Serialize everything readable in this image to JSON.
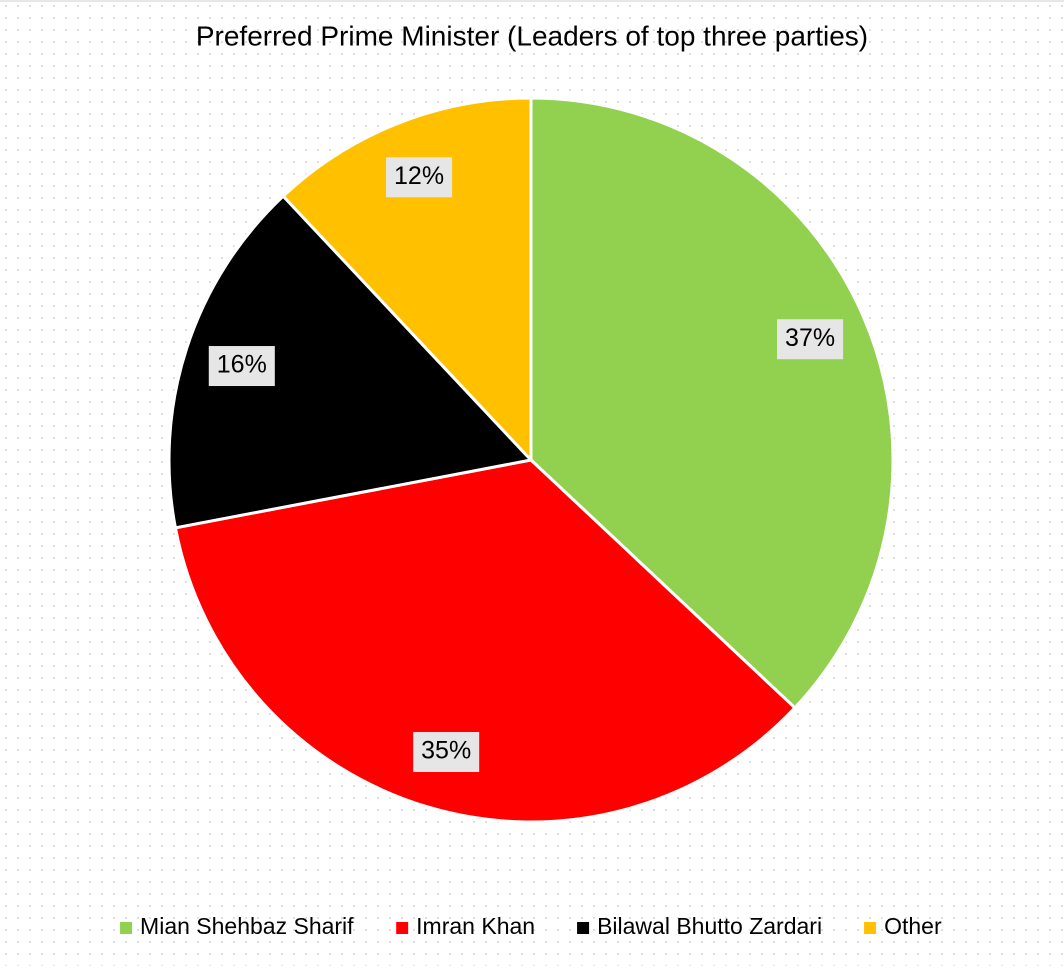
{
  "chart_data": {
    "type": "pie",
    "title": "Preferred Prime Minister (Leaders of top three parties)",
    "categories": [
      "Mian Shehbaz Sharif",
      "Imran Khan",
      "Bilawal Bhutto Zardari",
      "Other"
    ],
    "values": [
      37,
      35,
      16,
      12
    ],
    "value_labels": [
      "37%",
      "35%",
      "16%",
      "12%"
    ],
    "colors": [
      "#92d050",
      "#ff0000",
      "#000000",
      "#ffc000"
    ]
  }
}
